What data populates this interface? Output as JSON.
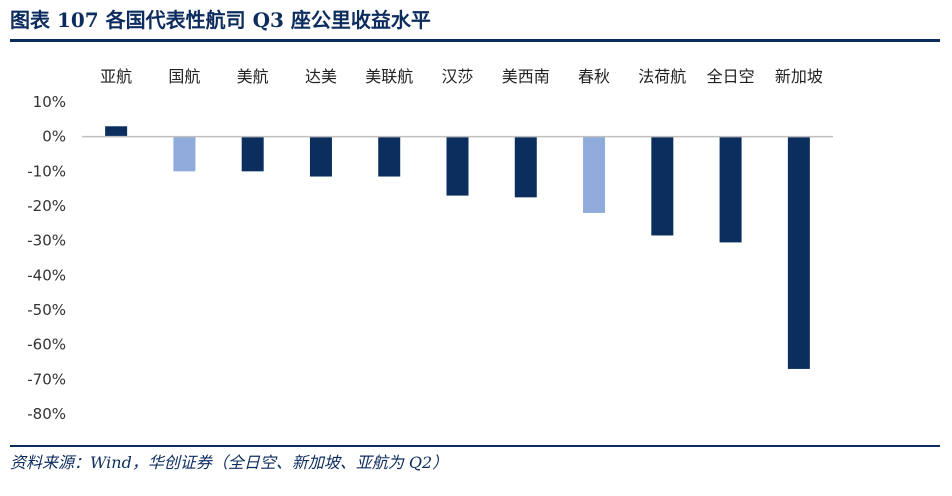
{
  "header": {
    "title": "图表 107 各国代表性航司 Q3 座公里收益水平"
  },
  "footer": {
    "source": "资料来源：Wind，华创证券（全日空、新加坡、亚航为 Q2）"
  },
  "colors": {
    "primary": "#0b2e5f",
    "highlight": "#8fabdc",
    "axis": "#bfbfbf",
    "rule": "#0d2c5e"
  },
  "chart_data": {
    "type": "bar",
    "categories": [
      "亚航",
      "国航",
      "美航",
      "达美",
      "美联航",
      "汉莎",
      "美西南",
      "春秋",
      "法荷航",
      "全日空",
      "新加坡"
    ],
    "values": [
      3,
      -10,
      -10,
      -11.5,
      -11.5,
      -17,
      -17.5,
      -22,
      -28.5,
      -30.5,
      -67
    ],
    "highlighted": [
      "国航",
      "春秋"
    ],
    "ylim": [
      -80,
      10
    ],
    "yticks": [
      10,
      0,
      -10,
      -20,
      -30,
      -40,
      -50,
      -60,
      -70,
      -80
    ],
    "ytick_labels": [
      "10%",
      "0%",
      "-10%",
      "-20%",
      "-30%",
      "-40%",
      "-50%",
      "-60%",
      "-70%",
      "-80%"
    ],
    "category_label_position": "top",
    "grid": false
  }
}
